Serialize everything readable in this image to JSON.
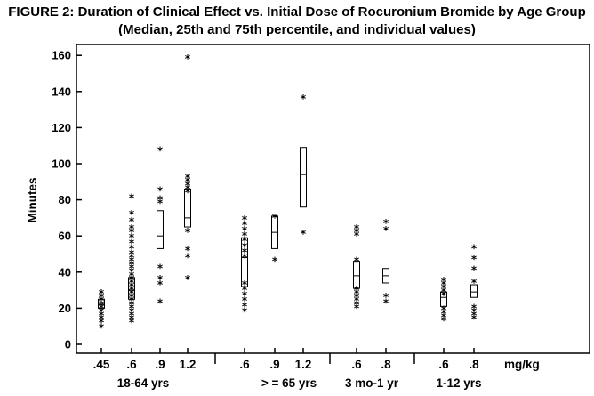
{
  "chart_data": {
    "type": "box",
    "title": "FIGURE 2: Duration of Clinical Effect vs. Initial Dose of Rocuronium Bromide by Age Group",
    "subtitle": "(Median, 25th and 75th percentile, and individual values)",
    "ylabel": "Minutes",
    "xlabel": "",
    "ylim": [
      0,
      160
    ],
    "yticks": [
      0,
      20,
      40,
      60,
      80,
      100,
      120,
      140,
      160
    ],
    "dose_unit": "mg/kg",
    "grid": false,
    "groups": [
      {
        "name": "18-64 yrs",
        "boxes": [
          {
            "dose": ".45",
            "q1": 20,
            "median": 22,
            "q3": 25,
            "points": [
              11,
              14,
              16,
              18,
              20,
              22,
              24,
              26,
              28,
              30
            ]
          },
          {
            "dose": ".6",
            "q1": 25,
            "median": 30,
            "q3": 37,
            "points": [
              14,
              16,
              18,
              20,
              22,
              24,
              26,
              28,
              30,
              32,
              34,
              36,
              38,
              40,
              42,
              44,
              46,
              48,
              50,
              52,
              55,
              58,
              61,
              64,
              66,
              70,
              74,
              83
            ]
          },
          {
            "dose": ".9",
            "q1": 53,
            "median": 60,
            "q3": 74,
            "points": [
              25,
              35,
              38,
              44,
              80,
              82,
              87,
              109
            ]
          },
          {
            "dose": "1.2",
            "q1": 65,
            "median": 70,
            "q3": 86,
            "points": [
              38,
              50,
              54,
              64,
              86,
              88,
              90,
              92,
              94,
              160
            ]
          }
        ]
      },
      {
        "name": "> = 65 yrs",
        "boxes": [
          {
            "dose": ".6",
            "q1": 32,
            "median": 48,
            "q3": 59,
            "points": [
              20,
              23,
              26,
              29,
              32,
              35,
              50,
              53,
              56,
              59,
              62,
              65,
              68,
              71
            ]
          },
          {
            "dose": ".9",
            "q1": 53,
            "median": 62,
            "q3": 71,
            "points": [
              48,
              72
            ]
          },
          {
            "dose": "1.2",
            "q1": 76,
            "median": 94,
            "q3": 109,
            "points": [
              63,
              138
            ]
          }
        ]
      },
      {
        "name": "3 mo-1 yr",
        "boxes": [
          {
            "dose": ".6",
            "q1": 31,
            "median": 38,
            "q3": 46,
            "points": [
              22,
              24,
              26,
              28,
              30,
              32,
              48,
              62,
              64,
              66
            ]
          },
          {
            "dose": ".8",
            "q1": 34,
            "median": 38,
            "q3": 42,
            "points": [
              25,
              28,
              65,
              69
            ]
          }
        ]
      },
      {
        "name": "1-12 yrs",
        "boxes": [
          {
            "dose": ".6",
            "q1": 21,
            "median": 26,
            "q3": 29,
            "points": [
              15,
              17,
              19,
              21,
              29,
              31,
              33,
              35,
              37
            ]
          },
          {
            "dose": ".8",
            "q1": 26,
            "median": 29,
            "q3": 33,
            "points": [
              16,
              18,
              20,
              22,
              36,
              43,
              49,
              55
            ]
          }
        ]
      }
    ]
  }
}
